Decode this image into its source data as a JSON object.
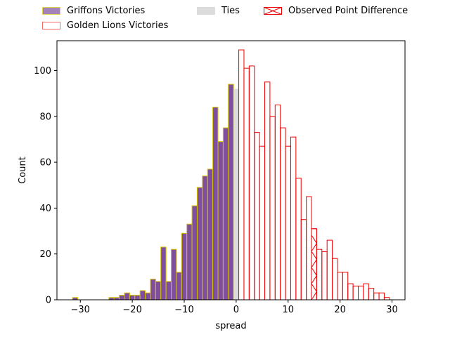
{
  "colors": {
    "griffons_fill": "#7e4f9e",
    "griffons_edge": "#d9c200",
    "lions_edge": "#ee0000",
    "ties_fill": "#dcdcdc",
    "observed_edge": "#ee0000"
  },
  "legend": {
    "griffons": "Griffons Victories",
    "lions": "Golden Lions Victories",
    "ties": "Ties",
    "observed": "Observed Point Difference"
  },
  "chart_data": {
    "type": "bar",
    "xlabel": "spread",
    "ylabel": "Count",
    "xlim": [
      -34.5,
      32.5
    ],
    "ylim": [
      0,
      113
    ],
    "xticks": [
      -30,
      -20,
      -10,
      0,
      10,
      20,
      30
    ],
    "yticks": [
      0,
      20,
      40,
      60,
      80,
      100
    ],
    "grid": false,
    "legend_position": "top, outside plot",
    "series": [
      {
        "name": "Griffons Victories",
        "bins": [
          {
            "x": -31,
            "count": 1
          },
          {
            "x": -24,
            "count": 1
          },
          {
            "x": -23,
            "count": 1
          },
          {
            "x": -22,
            "count": 2
          },
          {
            "x": -21,
            "count": 3
          },
          {
            "x": -20,
            "count": 2
          },
          {
            "x": -19,
            "count": 2
          },
          {
            "x": -18,
            "count": 4
          },
          {
            "x": -17,
            "count": 3
          },
          {
            "x": -16,
            "count": 9
          },
          {
            "x": -15,
            "count": 8
          },
          {
            "x": -14,
            "count": 23
          },
          {
            "x": -13,
            "count": 8
          },
          {
            "x": -12,
            "count": 22
          },
          {
            "x": -11,
            "count": 12
          },
          {
            "x": -10,
            "count": 29
          },
          {
            "x": -9,
            "count": 33
          },
          {
            "x": -8,
            "count": 41
          },
          {
            "x": -7,
            "count": 49
          },
          {
            "x": -6,
            "count": 54
          },
          {
            "x": -5,
            "count": 57
          },
          {
            "x": -4,
            "count": 84
          },
          {
            "x": -3,
            "count": 69
          },
          {
            "x": -2,
            "count": 75
          },
          {
            "x": -1,
            "count": 94
          }
        ]
      },
      {
        "name": "Ties",
        "bins": [
          {
            "x": 0,
            "count": 92
          }
        ]
      },
      {
        "name": "Golden Lions Victories",
        "bins": [
          {
            "x": 1,
            "count": 109
          },
          {
            "x": 2,
            "count": 101
          },
          {
            "x": 3,
            "count": 102
          },
          {
            "x": 4,
            "count": 73
          },
          {
            "x": 5,
            "count": 67
          },
          {
            "x": 6,
            "count": 95
          },
          {
            "x": 7,
            "count": 80
          },
          {
            "x": 8,
            "count": 85
          },
          {
            "x": 9,
            "count": 75
          },
          {
            "x": 10,
            "count": 67
          },
          {
            "x": 11,
            "count": 71
          },
          {
            "x": 12,
            "count": 53
          },
          {
            "x": 13,
            "count": 35
          },
          {
            "x": 14,
            "count": 45
          },
          {
            "x": 15,
            "count": 31
          },
          {
            "x": 16,
            "count": 22
          },
          {
            "x": 17,
            "count": 21
          },
          {
            "x": 18,
            "count": 26
          },
          {
            "x": 19,
            "count": 18
          },
          {
            "x": 20,
            "count": 12
          },
          {
            "x": 21,
            "count": 12
          },
          {
            "x": 22,
            "count": 7
          },
          {
            "x": 23,
            "count": 6
          },
          {
            "x": 24,
            "count": 6
          },
          {
            "x": 25,
            "count": 7
          },
          {
            "x": 26,
            "count": 5
          },
          {
            "x": 27,
            "count": 3
          },
          {
            "x": 28,
            "count": 3
          },
          {
            "x": 29,
            "count": 1
          }
        ]
      },
      {
        "name": "Observed Point Difference",
        "bins": [
          {
            "x": 15,
            "count": 31
          }
        ]
      }
    ]
  }
}
